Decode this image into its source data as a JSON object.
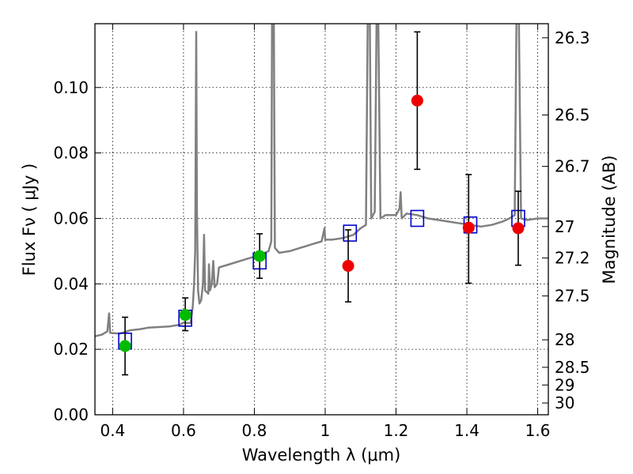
{
  "chart_data": {
    "type": "scatter",
    "title": "",
    "xlabel": "Wavelength  λ (μm)",
    "ylabel": "Flux  Fν  ( μJy )",
    "y2label": "Magnitude (AB)",
    "xlim": [
      0.35,
      1.63
    ],
    "ylim": [
      0.0,
      0.1195
    ],
    "grid": true,
    "x_ticks": [
      {
        "value": 0.4,
        "label": "0.4"
      },
      {
        "value": 0.6,
        "label": "0.6"
      },
      {
        "value": 0.8,
        "label": "0.8"
      },
      {
        "value": 1.0,
        "label": "1"
      },
      {
        "value": 1.2,
        "label": "1.2"
      },
      {
        "value": 1.4,
        "label": "1.4"
      },
      {
        "value": 1.6,
        "label": "1.6"
      }
    ],
    "y_ticks": [
      {
        "value": 0.0,
        "label": "0.00"
      },
      {
        "value": 0.02,
        "label": "0.02"
      },
      {
        "value": 0.04,
        "label": "0.04"
      },
      {
        "value": 0.06,
        "label": "0.06"
      },
      {
        "value": 0.08,
        "label": "0.08"
      },
      {
        "value": 0.1,
        "label": "0.10"
      }
    ],
    "y2_ticks": [
      {
        "flux": 0.1152,
        "label": "26.3"
      },
      {
        "flux": 0.0916,
        "label": "26.5"
      },
      {
        "flux": 0.0759,
        "label": "26.7"
      },
      {
        "flux": 0.0575,
        "label": "27"
      },
      {
        "flux": 0.0479,
        "label": "27.2"
      },
      {
        "flux": 0.0363,
        "label": "27.5"
      },
      {
        "flux": 0.0229,
        "label": "28"
      },
      {
        "flux": 0.0145,
        "label": "28.5"
      },
      {
        "flux": 0.0091,
        "label": "29"
      },
      {
        "flux": 0.0036,
        "label": "30"
      }
    ],
    "series": [
      {
        "kind": "line",
        "color": "#808080",
        "points": [
          [
            0.35,
            0.024
          ],
          [
            0.37,
            0.0245
          ],
          [
            0.385,
            0.0255
          ],
          [
            0.39,
            0.031
          ],
          [
            0.393,
            0.025
          ],
          [
            0.42,
            0.0248
          ],
          [
            0.45,
            0.0258
          ],
          [
            0.48,
            0.0262
          ],
          [
            0.5,
            0.0266
          ],
          [
            0.53,
            0.0268
          ],
          [
            0.56,
            0.027
          ],
          [
            0.59,
            0.0275
          ],
          [
            0.6,
            0.0282
          ],
          [
            0.62,
            0.028
          ],
          [
            0.626,
            0.033
          ],
          [
            0.63,
            0.04
          ],
          [
            0.633,
            0.05
          ],
          [
            0.636,
            0.117
          ],
          [
            0.638,
            0.062
          ],
          [
            0.641,
            0.038
          ],
          [
            0.645,
            0.034
          ],
          [
            0.65,
            0.035
          ],
          [
            0.655,
            0.04
          ],
          [
            0.658,
            0.055
          ],
          [
            0.661,
            0.038
          ],
          [
            0.67,
            0.037
          ],
          [
            0.672,
            0.046
          ],
          [
            0.675,
            0.038
          ],
          [
            0.68,
            0.04
          ],
          [
            0.684,
            0.047
          ],
          [
            0.688,
            0.039
          ],
          [
            0.695,
            0.04
          ],
          [
            0.7,
            0.045
          ],
          [
            0.73,
            0.046
          ],
          [
            0.76,
            0.047
          ],
          [
            0.79,
            0.048
          ],
          [
            0.82,
            0.049
          ],
          [
            0.84,
            0.05
          ],
          [
            0.848,
            0.053
          ],
          [
            0.85,
            0.12
          ],
          [
            0.855,
            0.12
          ],
          [
            0.858,
            0.051
          ],
          [
            0.87,
            0.0495
          ],
          [
            0.9,
            0.05
          ],
          [
            0.93,
            0.051
          ],
          [
            0.96,
            0.052
          ],
          [
            0.99,
            0.053
          ],
          [
            0.998,
            0.057
          ],
          [
            1.0,
            0.0535
          ],
          [
            1.02,
            0.0535
          ],
          [
            1.05,
            0.054
          ],
          [
            1.08,
            0.055
          ],
          [
            1.1,
            0.057
          ],
          [
            1.115,
            0.058
          ],
          [
            1.12,
            0.12
          ],
          [
            1.126,
            0.12
          ],
          [
            1.13,
            0.06
          ],
          [
            1.14,
            0.062
          ],
          [
            1.145,
            0.12
          ],
          [
            1.15,
            0.12
          ],
          [
            1.156,
            0.06
          ],
          [
            1.17,
            0.061
          ],
          [
            1.2,
            0.061
          ],
          [
            1.21,
            0.063
          ],
          [
            1.213,
            0.068
          ],
          [
            1.216,
            0.06
          ],
          [
            1.23,
            0.0615
          ],
          [
            1.26,
            0.061
          ],
          [
            1.29,
            0.06
          ],
          [
            1.32,
            0.0595
          ],
          [
            1.35,
            0.059
          ],
          [
            1.38,
            0.0585
          ],
          [
            1.41,
            0.058
          ],
          [
            1.44,
            0.0575
          ],
          [
            1.47,
            0.058
          ],
          [
            1.5,
            0.059
          ],
          [
            1.52,
            0.06
          ],
          [
            1.535,
            0.061
          ],
          [
            1.54,
            0.12
          ],
          [
            1.547,
            0.12
          ],
          [
            1.553,
            0.06
          ],
          [
            1.57,
            0.0595
          ],
          [
            1.6,
            0.06
          ],
          [
            1.63,
            0.06
          ]
        ]
      },
      {
        "kind": "markers",
        "marker": "square",
        "color": "#0000cc",
        "points": [
          [
            0.435,
            0.0225
          ],
          [
            0.605,
            0.0295
          ],
          [
            0.815,
            0.047
          ],
          [
            1.07,
            0.0555
          ],
          [
            1.26,
            0.06
          ],
          [
            1.41,
            0.058
          ],
          [
            1.545,
            0.06
          ]
        ]
      },
      {
        "kind": "markers",
        "marker": "circle",
        "color": "#00bb00",
        "points": [
          {
            "x": 0.435,
            "y": 0.021,
            "err_lo": 0.0088,
            "err_hi": 0.0088
          },
          {
            "x": 0.605,
            "y": 0.0305,
            "err_lo": 0.0048,
            "err_hi": 0.0052
          },
          {
            "x": 0.815,
            "y": 0.0485,
            "err_lo": 0.0068,
            "err_hi": 0.0068
          }
        ]
      },
      {
        "kind": "markers",
        "marker": "circle",
        "color": "#ee0000",
        "points": [
          {
            "x": 1.065,
            "y": 0.0455,
            "err_lo": 0.011,
            "err_hi": 0.011
          },
          {
            "x": 1.26,
            "y": 0.096,
            "err_lo": 0.021,
            "err_hi": 0.021
          },
          {
            "x": 1.405,
            "y": 0.0572,
            "err_lo": 0.017,
            "err_hi": 0.0162
          },
          {
            "x": 1.545,
            "y": 0.057,
            "err_lo": 0.0113,
            "err_hi": 0.0113
          }
        ]
      }
    ]
  }
}
